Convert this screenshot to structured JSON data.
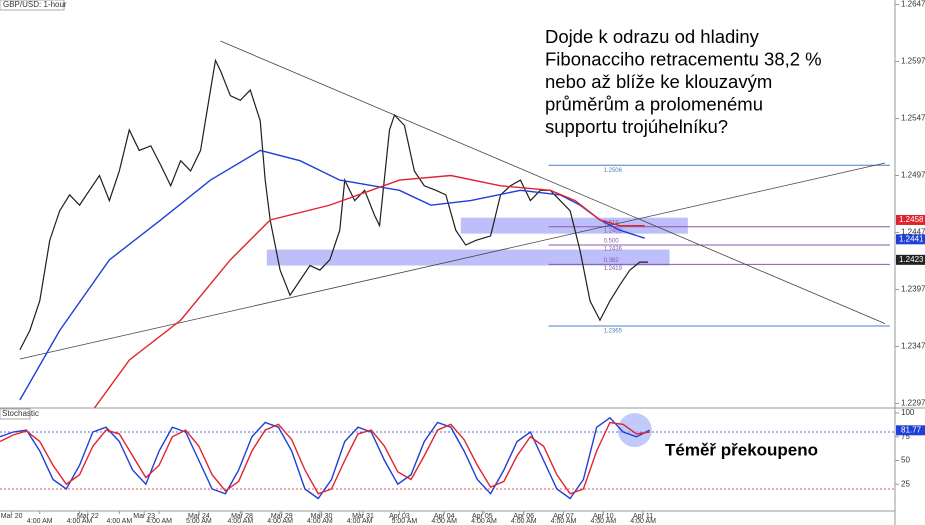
{
  "chart_data": [
    {
      "type": "line",
      "title": "GBP/USD: 1-hour",
      "xlim": [
        0,
        540
      ],
      "ylim": [
        1.2293,
        1.2651
      ],
      "yticks": [
        1.2647,
        1.2597,
        1.2547,
        1.2497,
        1.2447,
        1.2397,
        1.2347,
        1.2297
      ],
      "series": [
        {
          "color": "#1f1f1f",
          "x": [
            12,
            18,
            24,
            30,
            36,
            42,
            48,
            54,
            60,
            66,
            72,
            78,
            84,
            91,
            97,
            103,
            109,
            115,
            121,
            127,
            130,
            133,
            139,
            145,
            151,
            157,
            160,
            163,
            169,
            175,
            181,
            187,
            193,
            199,
            205,
            208,
            214,
            220,
            226,
            229,
            235,
            238,
            244,
            250,
            256,
            263,
            269,
            275,
            281,
            287,
            296,
            302,
            308,
            314,
            320,
            326,
            332,
            338,
            344,
            350,
            356,
            362,
            368,
            374,
            380,
            386,
            391
          ],
          "values": [
            1.2344,
            1.2361,
            1.2387,
            1.244,
            1.2466,
            1.248,
            1.2471,
            1.2484,
            1.2497,
            1.2475,
            1.2501,
            1.2537,
            1.2519,
            1.2523,
            1.2506,
            1.2488,
            1.251,
            1.2501,
            1.2519,
            1.2572,
            1.2598,
            1.2589,
            1.2567,
            1.2563,
            1.2572,
            1.2545,
            1.2493,
            1.2458,
            1.2414,
            1.2392,
            1.2405,
            1.2418,
            1.2414,
            1.2423,
            1.2449,
            1.2493,
            1.2475,
            1.2484,
            1.2462,
            1.2453,
            1.2537,
            1.255,
            1.2541,
            1.2501,
            1.2488,
            1.2484,
            1.248,
            1.2449,
            1.2436,
            1.244,
            1.2444,
            1.248,
            1.2488,
            1.2493,
            1.2475,
            1.2484,
            1.2484,
            1.2475,
            1.2466,
            1.2431,
            1.2387,
            1.237,
            1.2387,
            1.2401,
            1.2414,
            1.2421,
            1.2421
          ]
        },
        {
          "color": "#1f3fd6",
          "x": [
            12,
            36,
            66,
            97,
            127,
            157,
            181,
            205,
            241,
            260,
            284,
            314,
            338,
            350,
            362,
            374,
            389
          ],
          "values": [
            1.23,
            1.2361,
            1.2423,
            1.2458,
            1.2493,
            1.2519,
            1.251,
            1.2493,
            1.2484,
            1.2471,
            1.2475,
            1.2484,
            1.248,
            1.2471,
            1.2458,
            1.2449,
            1.2442
          ]
        },
        {
          "color": "#e0242f",
          "x": [
            57,
            78,
            109,
            139,
            163,
            199,
            241,
            272,
            302,
            332,
            347,
            362,
            374,
            389
          ],
          "values": [
            1.2293,
            1.2335,
            1.237,
            1.2423,
            1.2458,
            1.2471,
            1.2493,
            1.2497,
            1.2488,
            1.2484,
            1.2475,
            1.2458,
            1.2453,
            1.2453
          ]
        }
      ],
      "trendlines": [
        {
          "x": [
            133,
            534
          ],
          "values": [
            1.2615,
            1.2367
          ]
        },
        {
          "x": [
            12,
            534
          ],
          "values": [
            1.2336,
            1.2508
          ]
        }
      ],
      "zones": [
        {
          "x": [
            278,
            415
          ],
          "values": [
            1.2446,
            1.246
          ]
        },
        {
          "x": [
            161,
            404
          ],
          "values": [
            1.2418,
            1.2432
          ]
        }
      ],
      "fib": {
        "x": [
          331,
          537
        ],
        "levels": [
          {
            "price": 1.2506,
            "color": "#4a7fc0"
          },
          {
            "ratio": "0.618",
            "price": 1.2452,
            "color": "#8a5aa8"
          },
          {
            "ratio": "0.500",
            "price": 1.2436,
            "color": "#8a5aa8"
          },
          {
            "ratio": "0.382",
            "price": 1.2419,
            "color": "#8a5aa8"
          },
          {
            "price": 1.2365,
            "color": "#4a7fc0"
          }
        ]
      },
      "price_labels": [
        {
          "value": 1.2458,
          "color": "#e0242f"
        },
        {
          "value": 1.2441,
          "color": "#1f3fd6"
        },
        {
          "value": 1.2423,
          "color": "#222222"
        }
      ],
      "annotation": [
        "Dojde k odrazu od hladiny",
        "Fibonacciho retracementu 38,2 %",
        "nebo až blíže ke klouzavým",
        "průměrům a prolomenému",
        "supportu trojúhelníku?"
      ]
    },
    {
      "type": "line",
      "title": "Stochastic",
      "xlim": [
        0,
        540
      ],
      "ylim": [
        0,
        100
      ],
      "yticks": [
        100,
        75,
        50,
        25
      ],
      "levels": [
        {
          "value": 80,
          "color": "#1f3fd6"
        },
        {
          "value": 20,
          "color": "#e0242f"
        }
      ],
      "series": [
        {
          "color": "#1f3fd6",
          "x": [
            0,
            8,
            16,
            24,
            32,
            40,
            48,
            56,
            64,
            72,
            80,
            88,
            96,
            104,
            112,
            120,
            128,
            136,
            144,
            152,
            160,
            168,
            176,
            184,
            192,
            200,
            208,
            216,
            224,
            232,
            240,
            248,
            256,
            264,
            272,
            280,
            288,
            296,
            304,
            312,
            320,
            328,
            336,
            344,
            352,
            360,
            368,
            376,
            384,
            392
          ],
          "values": [
            75,
            80,
            82,
            60,
            30,
            20,
            45,
            80,
            85,
            70,
            40,
            25,
            60,
            85,
            80,
            50,
            20,
            15,
            40,
            75,
            90,
            85,
            60,
            20,
            10,
            30,
            70,
            85,
            80,
            50,
            25,
            35,
            70,
            90,
            85,
            60,
            30,
            15,
            40,
            70,
            80,
            50,
            20,
            10,
            30,
            85,
            95,
            80,
            75,
            82
          ]
        },
        {
          "color": "#e0242f",
          "x": [
            0,
            8,
            16,
            24,
            32,
            40,
            48,
            56,
            64,
            72,
            80,
            88,
            96,
            104,
            112,
            120,
            128,
            136,
            144,
            152,
            160,
            168,
            176,
            184,
            192,
            200,
            208,
            216,
            224,
            232,
            240,
            248,
            256,
            264,
            272,
            280,
            288,
            296,
            304,
            312,
            320,
            328,
            336,
            344,
            352,
            360,
            368,
            376,
            384,
            392
          ],
          "values": [
            70,
            77,
            81,
            70,
            45,
            25,
            35,
            65,
            82,
            78,
            55,
            32,
            45,
            75,
            82,
            65,
            35,
            18,
            28,
            60,
            82,
            88,
            72,
            40,
            15,
            20,
            50,
            78,
            82,
            65,
            38,
            30,
            55,
            82,
            88,
            72,
            45,
            22,
            28,
            55,
            75,
            65,
            35,
            15,
            20,
            60,
            90,
            88,
            78,
            80
          ]
        }
      ],
      "last_value": 81.77,
      "date_ticks": [
        {
          "value": 7,
          "label": "Mar 20"
        },
        {
          "value": 53,
          "label": "Mar 22"
        },
        {
          "value": 87,
          "label": "Mar 23"
        },
        {
          "value": 120,
          "label": "Mar 24"
        },
        {
          "value": 146,
          "label": "Mar 28"
        },
        {
          "value": 170,
          "label": "Mar 29"
        },
        {
          "value": 194,
          "label": "Mar 30"
        },
        {
          "value": 219,
          "label": "Mar 31"
        },
        {
          "value": 241,
          "label": "Apr 03"
        },
        {
          "value": 268,
          "label": "Apr 04"
        },
        {
          "value": 291,
          "label": "Apr 05"
        },
        {
          "value": 316,
          "label": "Apr 06"
        },
        {
          "value": 340,
          "label": "Apr 07"
        },
        {
          "value": 364,
          "label": "Apr 10"
        },
        {
          "value": 388,
          "label": "Apr 11"
        }
      ],
      "time_ticks": [
        {
          "value": 24,
          "label": "4:00 AM"
        },
        {
          "value": 48,
          "label": "4:00 AM"
        },
        {
          "value": 72,
          "label": "4:00 AM"
        },
        {
          "value": 96,
          "label": "4:00 AM"
        },
        {
          "value": 120,
          "label": "5:00 AM"
        },
        {
          "value": 145,
          "label": "4:00 AM"
        },
        {
          "value": 169,
          "label": "4:00 AM"
        },
        {
          "value": 193,
          "label": "4:00 AM"
        },
        {
          "value": 217,
          "label": "4:00 AM"
        },
        {
          "value": 244,
          "label": "5:00 AM"
        },
        {
          "value": 268,
          "label": "4:00 AM"
        },
        {
          "value": 292,
          "label": "4:00 AM"
        },
        {
          "value": 316,
          "label": "4:00 AM"
        },
        {
          "value": 340,
          "label": "4:00 AM"
        },
        {
          "value": 364,
          "label": "4:00 AM"
        },
        {
          "value": 388,
          "label": "4:00 AM"
        }
      ],
      "annotation": "Téměř překoupeno",
      "highlight": {
        "x": 383,
        "value": 82
      }
    }
  ]
}
